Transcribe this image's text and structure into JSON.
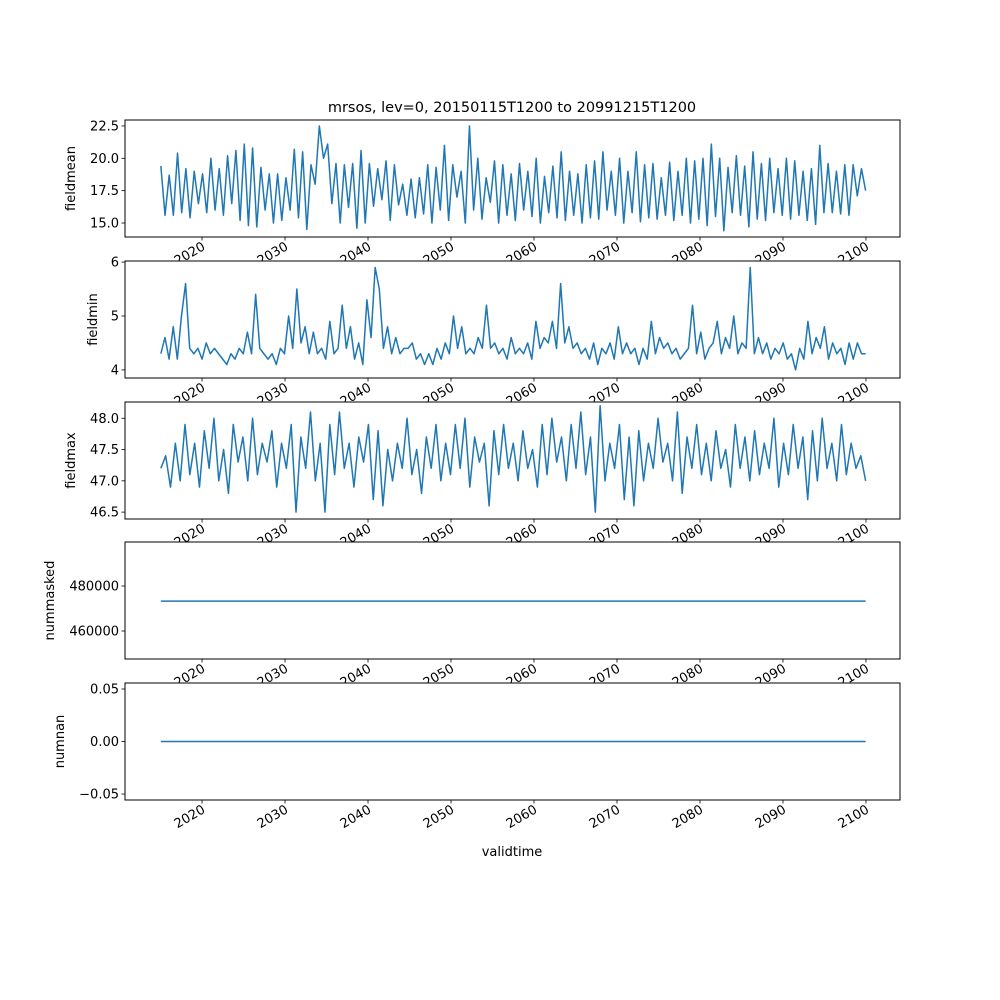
{
  "chart_data": {
    "type": "line",
    "title": "mrsos, lev=0, 20150115T1200 to 20991215T1200",
    "xlabel": "validtime",
    "xlim": [
      2010.72,
      2104.1
    ],
    "x_ticks": [
      2020,
      2030,
      2040,
      2050,
      2060,
      2070,
      2080,
      2090,
      2100
    ],
    "x_tick_labels": [
      "2020",
      "2030",
      "2040",
      "2050",
      "2060",
      "2070",
      "2080",
      "2090",
      "2100"
    ],
    "line_color": "#1f77b4",
    "grid": false,
    "subplots": [
      {
        "ylabel": "fieldmean",
        "ylim": [
          13.92,
          22.96
        ],
        "y_ticks": [
          15.0,
          17.5,
          20.0,
          22.5
        ],
        "y_tick_labels": [
          "15.0",
          "17.5",
          "20.0",
          "22.5"
        ],
        "x_start": 2015.04,
        "x_end": 2099.96,
        "values": [
          19.4,
          15.6,
          18.7,
          15.6,
          20.4,
          15.8,
          19.2,
          15.4,
          19.0,
          16.5,
          18.8,
          15.8,
          20.0,
          16.0,
          19.2,
          15.6,
          20.2,
          16.5,
          20.6,
          15.2,
          21.1,
          14.8,
          20.8,
          14.7,
          19.3,
          16.0,
          18.8,
          15.0,
          18.8,
          15.2,
          18.5,
          16.0,
          20.7,
          15.4,
          20.5,
          14.5,
          19.5,
          18.0,
          22.5,
          20.0,
          21.1,
          16.5,
          19.6,
          15.0,
          19.5,
          16.2,
          19.6,
          14.6,
          20.6,
          15.0,
          19.6,
          16.3,
          19.2,
          16.8,
          19.8,
          15.2,
          19.5,
          16.4,
          18.0,
          15.6,
          18.4,
          15.4,
          18.5,
          15.7,
          19.5,
          15.0,
          19.3,
          16.0,
          21.0,
          15.2,
          19.5,
          17.0,
          19.0,
          15.0,
          22.5,
          16.0,
          20.0,
          15.3,
          18.5,
          16.6,
          19.8,
          15.0,
          19.5,
          15.6,
          18.8,
          15.2,
          19.6,
          16.0,
          19.0,
          15.5,
          20.0,
          15.0,
          18.6,
          15.8,
          19.4,
          15.4,
          20.5,
          15.2,
          19.0,
          15.6,
          18.8,
          15.0,
          19.5,
          15.4,
          19.8,
          15.3,
          20.5,
          16.0,
          19.0,
          15.6,
          20.0,
          15.0,
          19.0,
          15.8,
          20.5,
          15.1,
          19.5,
          15.4,
          19.6,
          15.3,
          18.5,
          15.6,
          19.7,
          15.2,
          19.0,
          15.6,
          20.0,
          15.0,
          19.8,
          15.3,
          20.0,
          14.8,
          21.1,
          15.5,
          20.0,
          14.4,
          19.3,
          15.8,
          20.2,
          15.6,
          19.4,
          14.7,
          20.5,
          15.3,
          19.6,
          15.2,
          20.0,
          15.8,
          19.2,
          15.6,
          20.0,
          15.3,
          19.8,
          15.6,
          19.0,
          15.2,
          19.2,
          14.9,
          21.0,
          15.8,
          19.6,
          15.8,
          19.0,
          15.7,
          19.5,
          15.6,
          19.5,
          17.1,
          19.2,
          17.5
        ]
      },
      {
        "ylabel": "fieldmin",
        "ylim": [
          3.85,
          6.02
        ],
        "y_ticks": [
          4,
          5,
          6
        ],
        "y_tick_labels": [
          "4",
          "5",
          "6"
        ],
        "x_start": 2015.04,
        "x_end": 2099.96,
        "values": [
          4.3,
          4.6,
          4.2,
          4.8,
          4.2,
          5.0,
          5.6,
          4.4,
          4.3,
          4.4,
          4.2,
          4.5,
          4.3,
          4.4,
          4.3,
          4.2,
          4.1,
          4.3,
          4.2,
          4.4,
          4.3,
          4.7,
          4.3,
          5.4,
          4.4,
          4.3,
          4.2,
          4.3,
          4.1,
          4.4,
          4.3,
          5.0,
          4.4,
          5.5,
          4.5,
          4.8,
          4.3,
          4.7,
          4.3,
          4.4,
          4.2,
          4.9,
          4.3,
          4.4,
          5.2,
          4.4,
          4.8,
          4.2,
          4.5,
          4.1,
          5.3,
          4.6,
          5.9,
          5.5,
          4.4,
          4.8,
          4.3,
          4.6,
          4.3,
          4.4,
          4.4,
          4.5,
          4.2,
          4.3,
          4.1,
          4.3,
          4.1,
          4.4,
          4.2,
          4.5,
          4.3,
          5.0,
          4.4,
          4.8,
          4.3,
          4.4,
          4.3,
          4.6,
          4.4,
          5.2,
          4.4,
          4.5,
          4.3,
          4.4,
          4.2,
          4.6,
          4.3,
          4.4,
          4.3,
          4.5,
          4.2,
          4.9,
          4.4,
          4.6,
          4.5,
          4.9,
          4.4,
          5.6,
          4.5,
          4.8,
          4.4,
          4.5,
          4.3,
          4.4,
          4.2,
          4.5,
          4.1,
          4.4,
          4.3,
          4.5,
          4.2,
          4.8,
          4.3,
          4.5,
          4.3,
          4.4,
          4.1,
          4.4,
          4.2,
          4.9,
          4.3,
          4.6,
          4.4,
          4.5,
          4.3,
          4.4,
          4.2,
          4.3,
          4.4,
          5.2,
          4.3,
          4.7,
          4.2,
          4.4,
          4.5,
          4.9,
          4.3,
          4.6,
          4.4,
          5.0,
          4.3,
          4.5,
          4.4,
          5.9,
          4.3,
          4.6,
          4.3,
          4.5,
          4.2,
          4.4,
          4.3,
          4.5,
          4.2,
          4.3,
          4.0,
          4.4,
          4.2,
          4.9,
          4.3,
          4.6,
          4.4,
          4.8,
          4.2,
          4.5,
          4.3,
          4.4,
          4.1,
          4.5,
          4.2,
          4.5,
          4.3,
          4.3
        ]
      },
      {
        "ylabel": "fieldmax",
        "ylim": [
          46.39,
          48.26
        ],
        "y_ticks": [
          46.5,
          47.0,
          47.5,
          48.0
        ],
        "y_tick_labels": [
          "46.5",
          "47.0",
          "47.5",
          "48.0"
        ],
        "x_start": 2015.04,
        "x_end": 2099.96,
        "values": [
          47.2,
          47.4,
          46.9,
          47.6,
          47.0,
          47.9,
          47.1,
          47.6,
          46.9,
          47.8,
          47.2,
          48.0,
          47.0,
          47.5,
          46.8,
          47.9,
          47.3,
          47.7,
          47.0,
          48.0,
          47.1,
          47.6,
          47.3,
          47.8,
          46.9,
          47.6,
          47.2,
          47.9,
          46.5,
          47.7,
          47.2,
          48.1,
          47.0,
          47.6,
          46.5,
          47.9,
          47.1,
          48.1,
          47.2,
          47.6,
          46.9,
          47.7,
          47.3,
          47.9,
          46.7,
          47.8,
          46.6,
          47.5,
          47.0,
          47.6,
          47.2,
          48.0,
          47.1,
          47.5,
          46.8,
          47.7,
          47.2,
          47.9,
          47.0,
          47.6,
          47.1,
          47.9,
          47.2,
          48.0,
          46.9,
          47.7,
          47.3,
          47.6,
          46.6,
          47.8,
          47.1,
          47.9,
          47.2,
          47.6,
          47.0,
          47.8,
          47.2,
          47.5,
          46.9,
          47.9,
          47.1,
          48.0,
          47.3,
          47.7,
          47.0,
          47.9,
          47.2,
          48.1,
          47.1,
          47.7,
          46.5,
          48.2,
          47.0,
          47.6,
          47.2,
          47.9,
          46.7,
          47.7,
          46.6,
          47.8,
          47.0,
          47.6,
          47.2,
          48.0,
          47.3,
          47.6,
          47.0,
          48.1,
          46.8,
          47.7,
          47.2,
          47.9,
          47.1,
          47.6,
          47.0,
          47.8,
          47.2,
          47.5,
          46.9,
          47.9,
          47.2,
          47.7,
          47.0,
          47.8,
          47.1,
          47.6,
          47.2,
          48.0,
          46.9,
          47.6,
          47.1,
          47.9,
          47.2,
          47.7,
          46.7,
          47.8,
          47.0,
          48.0,
          47.2,
          47.6,
          47.0,
          47.9,
          47.1,
          47.6,
          47.2,
          47.4,
          47.0
        ]
      },
      {
        "ylabel": "nummasked",
        "ylim": [
          447556,
          499556
        ],
        "y_ticks": [
          460000,
          480000
        ],
        "y_tick_labels": [
          "460000",
          "480000"
        ],
        "x_start": 2015.04,
        "x_end": 2099.96,
        "values": [
          473300,
          473300
        ]
      },
      {
        "ylabel": "numnan",
        "ylim": [
          -0.0557,
          0.0557
        ],
        "y_ticks": [
          -0.05,
          0.0,
          0.05
        ],
        "y_tick_labels": [
          "−0.05",
          "0.00",
          "0.05"
        ],
        "x_start": 2015.04,
        "x_end": 2099.96,
        "values": [
          0,
          0
        ]
      }
    ]
  }
}
